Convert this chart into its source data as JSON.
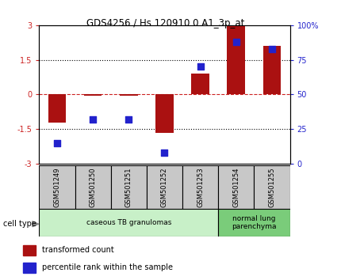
{
  "title": "GDS4256 / Hs.120910.0.A1_3p_at",
  "samples": [
    "GSM501249",
    "GSM501250",
    "GSM501251",
    "GSM501252",
    "GSM501253",
    "GSM501254",
    "GSM501255"
  ],
  "transformed_count": [
    -1.2,
    -0.05,
    -0.05,
    -1.65,
    0.9,
    2.95,
    2.1
  ],
  "percentile_rank": [
    15,
    32,
    32,
    8,
    70,
    88,
    83
  ],
  "ylim_left": [
    -3,
    3
  ],
  "ylim_right": [
    0,
    100
  ],
  "yticks_left": [
    -3,
    -1.5,
    0,
    1.5,
    3
  ],
  "yticks_right": [
    0,
    25,
    50,
    75,
    100
  ],
  "ytick_labels_left": [
    "-3",
    "-1.5",
    "0",
    "1.5",
    "3"
  ],
  "ytick_labels_right": [
    "0",
    "25",
    "50",
    "75",
    "100%"
  ],
  "hlines": [
    -1.5,
    0,
    1.5
  ],
  "bar_color": "#aa1111",
  "dot_color": "#2222cc",
  "bar_width": 0.5,
  "dot_size": 40,
  "cell_type_groups": [
    {
      "label": "caseous TB granulomas",
      "samples": [
        0,
        1,
        2,
        3,
        4
      ],
      "color": "#c8f0c8"
    },
    {
      "label": "normal lung\nparenchyma",
      "samples": [
        5,
        6
      ],
      "color": "#7acc7a"
    }
  ],
  "cell_type_label": "cell type",
  "legend_bar_label": "transformed count",
  "legend_dot_label": "percentile rank within the sample",
  "background_color": "#ffffff",
  "tick_label_color_left": "#cc2222",
  "tick_label_color_right": "#2222cc",
  "gray_box_color": "#c8c8c8"
}
